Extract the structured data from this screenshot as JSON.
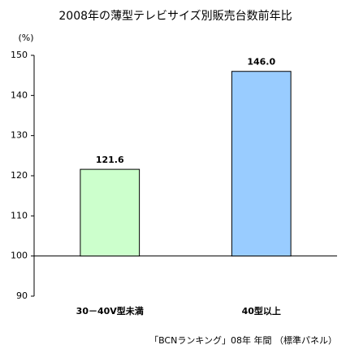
{
  "chart_data": {
    "type": "bar",
    "title": "2008年の薄型テレビサイズ別販売台数前年比",
    "y_label": "(%)",
    "categories": [
      "30－40V型未満",
      "40型以上"
    ],
    "values": [
      121.6,
      146.0
    ],
    "value_labels": [
      "121.6",
      "146.0"
    ],
    "colors": [
      "#ccffcc",
      "#99ccff"
    ],
    "ylim": [
      90,
      150
    ],
    "yticks": [
      90,
      100,
      110,
      120,
      130,
      140,
      150
    ],
    "baseline": 100,
    "source": "「BCNランキング」08年 年間 （標準パネル）"
  }
}
